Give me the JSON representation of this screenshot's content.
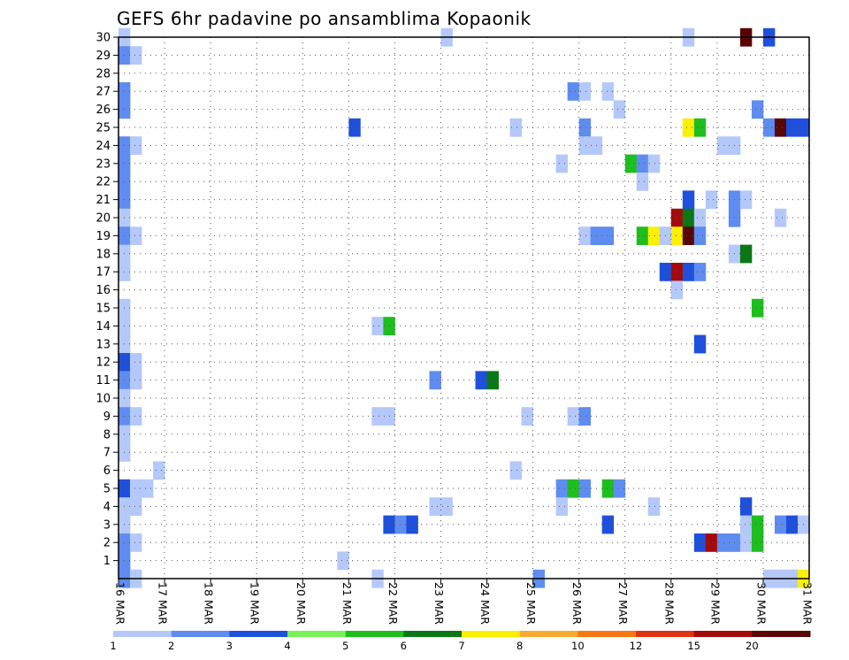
{
  "chart_data": {
    "type": "heatmap",
    "title": "GEFS 6hr padavine po ansamblima Kopaonik",
    "y_ticks": [
      "1",
      "2",
      "3",
      "4",
      "5",
      "6",
      "7",
      "8",
      "9",
      "10",
      "11",
      "12",
      "13",
      "14",
      "15",
      "16",
      "17",
      "18",
      "19",
      "20",
      "21",
      "22",
      "23",
      "24",
      "25",
      "26",
      "27",
      "28",
      "29",
      "30"
    ],
    "x_ticks": [
      "16 MAR",
      "17 MAR",
      "18 MAR",
      "19 MAR",
      "20 MAR",
      "21 MAR",
      "22 MAR",
      "23 MAR",
      "24 MAR",
      "25 MAR",
      "26 MAR",
      "27 MAR",
      "28 MAR",
      "29 MAR",
      "30 MAR",
      "31 MAR"
    ],
    "x_range": [
      "2016-03-16T00",
      "2016-03-31T00"
    ],
    "y_range": [
      0,
      30
    ],
    "steps_per_day": 4,
    "grid": true,
    "colorbar": {
      "labels": [
        "1",
        "2",
        "3",
        "4",
        "5",
        "6",
        "7",
        "8",
        "10",
        "12",
        "15",
        "20"
      ],
      "colors": [
        "#b4c8fa",
        "#5f8cf0",
        "#1e50dc",
        "#78f05a",
        "#1ebe1e",
        "#0a7814",
        "#faf000",
        "#faaa32",
        "#fa7814",
        "#e13214",
        "#a50a0a",
        "#5a0505"
      ]
    },
    "cells": [
      {
        "m": 30,
        "d": "16 MAR",
        "s": 0,
        "v": 1
      },
      {
        "m": 30,
        "d": "23 MAR",
        "s": 0,
        "v": 1
      },
      {
        "m": 30,
        "d": "28 MAR",
        "s": 1,
        "v": 1
      },
      {
        "m": 30,
        "d": "29 MAR",
        "s": 2,
        "v": 20
      },
      {
        "m": 30,
        "d": "30 MAR",
        "s": 0,
        "v": 3
      },
      {
        "m": 29,
        "d": "16 MAR",
        "s": 0,
        "v": 2
      },
      {
        "m": 29,
        "d": "16 MAR",
        "s": 1,
        "v": 1
      },
      {
        "m": 27,
        "d": "16 MAR",
        "s": 0,
        "v": 2
      },
      {
        "m": 27,
        "d": "25 MAR",
        "s": 3,
        "v": 2
      },
      {
        "m": 27,
        "d": "26 MAR",
        "s": 0,
        "v": 1
      },
      {
        "m": 27,
        "d": "26 MAR",
        "s": 2,
        "v": 1
      },
      {
        "m": 26,
        "d": "16 MAR",
        "s": 0,
        "v": 2
      },
      {
        "m": 26,
        "d": "26 MAR",
        "s": 3,
        "v": 1
      },
      {
        "m": 26,
        "d": "29 MAR",
        "s": 3,
        "v": 2
      },
      {
        "m": 25,
        "d": "21 MAR",
        "s": 0,
        "v": 3
      },
      {
        "m": 25,
        "d": "24 MAR",
        "s": 2,
        "v": 1
      },
      {
        "m": 25,
        "d": "26 MAR",
        "s": 0,
        "v": 2
      },
      {
        "m": 25,
        "d": "28 MAR",
        "s": 1,
        "v": 7
      },
      {
        "m": 25,
        "d": "28 MAR",
        "s": 2,
        "v": 5
      },
      {
        "m": 25,
        "d": "30 MAR",
        "s": 0,
        "v": 2
      },
      {
        "m": 25,
        "d": "30 MAR",
        "s": 1,
        "v": 20
      },
      {
        "m": 25,
        "d": "30 MAR",
        "s": 2,
        "v": 3
      },
      {
        "m": 25,
        "d": "30 MAR",
        "s": 3,
        "v": 3
      },
      {
        "m": 24,
        "d": "16 MAR",
        "s": 0,
        "v": 2
      },
      {
        "m": 24,
        "d": "16 MAR",
        "s": 1,
        "v": 1
      },
      {
        "m": 24,
        "d": "26 MAR",
        "s": 0,
        "v": 1
      },
      {
        "m": 24,
        "d": "26 MAR",
        "s": 1,
        "v": 1
      },
      {
        "m": 24,
        "d": "29 MAR",
        "s": 0,
        "v": 1
      },
      {
        "m": 24,
        "d": "29 MAR",
        "s": 1,
        "v": 1
      },
      {
        "m": 23,
        "d": "16 MAR",
        "s": 0,
        "v": 2
      },
      {
        "m": 23,
        "d": "25 MAR",
        "s": 2,
        "v": 1
      },
      {
        "m": 23,
        "d": "27 MAR",
        "s": 0,
        "v": 5
      },
      {
        "m": 23,
        "d": "27 MAR",
        "s": 1,
        "v": 2
      },
      {
        "m": 23,
        "d": "27 MAR",
        "s": 2,
        "v": 1
      },
      {
        "m": 22,
        "d": "16 MAR",
        "s": 0,
        "v": 2
      },
      {
        "m": 22,
        "d": "27 MAR",
        "s": 1,
        "v": 1
      },
      {
        "m": 21,
        "d": "16 MAR",
        "s": 0,
        "v": 2
      },
      {
        "m": 21,
        "d": "28 MAR",
        "s": 1,
        "v": 3
      },
      {
        "m": 21,
        "d": "28 MAR",
        "s": 3,
        "v": 1
      },
      {
        "m": 21,
        "d": "29 MAR",
        "s": 1,
        "v": 2
      },
      {
        "m": 21,
        "d": "29 MAR",
        "s": 2,
        "v": 1
      },
      {
        "m": 20,
        "d": "16 MAR",
        "s": 0,
        "v": 1
      },
      {
        "m": 20,
        "d": "28 MAR",
        "s": 0,
        "v": 15
      },
      {
        "m": 20,
        "d": "28 MAR",
        "s": 1,
        "v": 6
      },
      {
        "m": 20,
        "d": "28 MAR",
        "s": 2,
        "v": 1
      },
      {
        "m": 20,
        "d": "29 MAR",
        "s": 1,
        "v": 2
      },
      {
        "m": 20,
        "d": "30 MAR",
        "s": 1,
        "v": 1
      },
      {
        "m": 19,
        "d": "16 MAR",
        "s": 0,
        "v": 2
      },
      {
        "m": 19,
        "d": "16 MAR",
        "s": 1,
        "v": 1
      },
      {
        "m": 19,
        "d": "26 MAR",
        "s": 0,
        "v": 1
      },
      {
        "m": 19,
        "d": "26 MAR",
        "s": 1,
        "v": 2
      },
      {
        "m": 19,
        "d": "26 MAR",
        "s": 2,
        "v": 2
      },
      {
        "m": 19,
        "d": "27 MAR",
        "s": 1,
        "v": 5
      },
      {
        "m": 19,
        "d": "27 MAR",
        "s": 2,
        "v": 7
      },
      {
        "m": 19,
        "d": "27 MAR",
        "s": 3,
        "v": 1
      },
      {
        "m": 19,
        "d": "28 MAR",
        "s": 0,
        "v": 7
      },
      {
        "m": 19,
        "d": "28 MAR",
        "s": 1,
        "v": 20
      },
      {
        "m": 19,
        "d": "28 MAR",
        "s": 2,
        "v": 2
      },
      {
        "m": 18,
        "d": "16 MAR",
        "s": 0,
        "v": 1
      },
      {
        "m": 18,
        "d": "29 MAR",
        "s": 1,
        "v": 1
      },
      {
        "m": 18,
        "d": "29 MAR",
        "s": 2,
        "v": 6
      },
      {
        "m": 17,
        "d": "16 MAR",
        "s": 0,
        "v": 1
      },
      {
        "m": 17,
        "d": "27 MAR",
        "s": 3,
        "v": 3
      },
      {
        "m": 17,
        "d": "28 MAR",
        "s": 0,
        "v": 15
      },
      {
        "m": 17,
        "d": "28 MAR",
        "s": 1,
        "v": 3
      },
      {
        "m": 17,
        "d": "28 MAR",
        "s": 2,
        "v": 2
      },
      {
        "m": 16,
        "d": "28 MAR",
        "s": 0,
        "v": 1
      },
      {
        "m": 15,
        "d": "16 MAR",
        "s": 0,
        "v": 1
      },
      {
        "m": 15,
        "d": "29 MAR",
        "s": 3,
        "v": 5
      },
      {
        "m": 14,
        "d": "16 MAR",
        "s": 0,
        "v": 1
      },
      {
        "m": 14,
        "d": "21 MAR",
        "s": 2,
        "v": 1
      },
      {
        "m": 14,
        "d": "21 MAR",
        "s": 3,
        "v": 5
      },
      {
        "m": 13,
        "d": "16 MAR",
        "s": 0,
        "v": 1
      },
      {
        "m": 13,
        "d": "28 MAR",
        "s": 2,
        "v": 3
      },
      {
        "m": 12,
        "d": "16 MAR",
        "s": 0,
        "v": 3
      },
      {
        "m": 12,
        "d": "16 MAR",
        "s": 1,
        "v": 1
      },
      {
        "m": 11,
        "d": "16 MAR",
        "s": 0,
        "v": 2
      },
      {
        "m": 11,
        "d": "16 MAR",
        "s": 1,
        "v": 1
      },
      {
        "m": 11,
        "d": "22 MAR",
        "s": 3,
        "v": 2
      },
      {
        "m": 11,
        "d": "23 MAR",
        "s": 3,
        "v": 3
      },
      {
        "m": 11,
        "d": "24 MAR",
        "s": 0,
        "v": 6
      },
      {
        "m": 10,
        "d": "16 MAR",
        "s": 0,
        "v": 1
      },
      {
        "m": 9,
        "d": "16 MAR",
        "s": 0,
        "v": 2
      },
      {
        "m": 9,
        "d": "16 MAR",
        "s": 1,
        "v": 1
      },
      {
        "m": 9,
        "d": "21 MAR",
        "s": 2,
        "v": 1
      },
      {
        "m": 9,
        "d": "21 MAR",
        "s": 3,
        "v": 1
      },
      {
        "m": 9,
        "d": "24 MAR",
        "s": 3,
        "v": 1
      },
      {
        "m": 9,
        "d": "25 MAR",
        "s": 3,
        "v": 1
      },
      {
        "m": 9,
        "d": "26 MAR",
        "s": 0,
        "v": 2
      },
      {
        "m": 8,
        "d": "16 MAR",
        "s": 0,
        "v": 1
      },
      {
        "m": 7,
        "d": "16 MAR",
        "s": 0,
        "v": 1
      },
      {
        "m": 6,
        "d": "16 MAR",
        "s": 3,
        "v": 1
      },
      {
        "m": 6,
        "d": "24 MAR",
        "s": 2,
        "v": 1
      },
      {
        "m": 5,
        "d": "16 MAR",
        "s": 0,
        "v": 3
      },
      {
        "m": 5,
        "d": "16 MAR",
        "s": 1,
        "v": 1
      },
      {
        "m": 5,
        "d": "16 MAR",
        "s": 2,
        "v": 1
      },
      {
        "m": 5,
        "d": "25 MAR",
        "s": 2,
        "v": 2
      },
      {
        "m": 5,
        "d": "25 MAR",
        "s": 3,
        "v": 5
      },
      {
        "m": 5,
        "d": "26 MAR",
        "s": 0,
        "v": 2
      },
      {
        "m": 5,
        "d": "26 MAR",
        "s": 2,
        "v": 5
      },
      {
        "m": 5,
        "d": "26 MAR",
        "s": 3,
        "v": 2
      },
      {
        "m": 4,
        "d": "16 MAR",
        "s": 0,
        "v": 1
      },
      {
        "m": 4,
        "d": "16 MAR",
        "s": 1,
        "v": 1
      },
      {
        "m": 4,
        "d": "22 MAR",
        "s": 3,
        "v": 1
      },
      {
        "m": 4,
        "d": "23 MAR",
        "s": 0,
        "v": 1
      },
      {
        "m": 4,
        "d": "25 MAR",
        "s": 2,
        "v": 1
      },
      {
        "m": 4,
        "d": "27 MAR",
        "s": 2,
        "v": 1
      },
      {
        "m": 4,
        "d": "29 MAR",
        "s": 2,
        "v": 3
      },
      {
        "m": 3,
        "d": "16 MAR",
        "s": 0,
        "v": 1
      },
      {
        "m": 3,
        "d": "21 MAR",
        "s": 3,
        "v": 3
      },
      {
        "m": 3,
        "d": "22 MAR",
        "s": 0,
        "v": 2
      },
      {
        "m": 3,
        "d": "22 MAR",
        "s": 1,
        "v": 3
      },
      {
        "m": 3,
        "d": "26 MAR",
        "s": 2,
        "v": 3
      },
      {
        "m": 3,
        "d": "29 MAR",
        "s": 2,
        "v": 1
      },
      {
        "m": 3,
        "d": "29 MAR",
        "s": 3,
        "v": 5
      },
      {
        "m": 3,
        "d": "30 MAR",
        "s": 1,
        "v": 2
      },
      {
        "m": 3,
        "d": "30 MAR",
        "s": 2,
        "v": 3
      },
      {
        "m": 3,
        "d": "30 MAR",
        "s": 3,
        "v": 1
      },
      {
        "m": 2,
        "d": "16 MAR",
        "s": 0,
        "v": 2
      },
      {
        "m": 2,
        "d": "16 MAR",
        "s": 1,
        "v": 1
      },
      {
        "m": 2,
        "d": "28 MAR",
        "s": 2,
        "v": 3
      },
      {
        "m": 2,
        "d": "28 MAR",
        "s": 3,
        "v": 15
      },
      {
        "m": 2,
        "d": "29 MAR",
        "s": 0,
        "v": 2
      },
      {
        "m": 2,
        "d": "29 MAR",
        "s": 1,
        "v": 2
      },
      {
        "m": 2,
        "d": "29 MAR",
        "s": 2,
        "v": 1
      },
      {
        "m": 2,
        "d": "29 MAR",
        "s": 3,
        "v": 5
      },
      {
        "m": 1,
        "d": "16 MAR",
        "s": 0,
        "v": 2
      },
      {
        "m": 1,
        "d": "20 MAR",
        "s": 3,
        "v": 1
      },
      {
        "m": 0,
        "d": "16 MAR",
        "s": 0,
        "v": 2
      },
      {
        "m": 0,
        "d": "16 MAR",
        "s": 1,
        "v": 1
      },
      {
        "m": 0,
        "d": "21 MAR",
        "s": 2,
        "v": 1
      },
      {
        "m": 0,
        "d": "25 MAR",
        "s": 0,
        "v": 2
      },
      {
        "m": 0,
        "d": "30 MAR",
        "s": 0,
        "v": 1
      },
      {
        "m": 0,
        "d": "30 MAR",
        "s": 1,
        "v": 1
      },
      {
        "m": 0,
        "d": "30 MAR",
        "s": 2,
        "v": 1
      },
      {
        "m": 0,
        "d": "30 MAR",
        "s": 3,
        "v": 7
      },
      {
        "m": 0,
        "d": "31 MAR",
        "s": 0,
        "v": 3
      }
    ]
  }
}
